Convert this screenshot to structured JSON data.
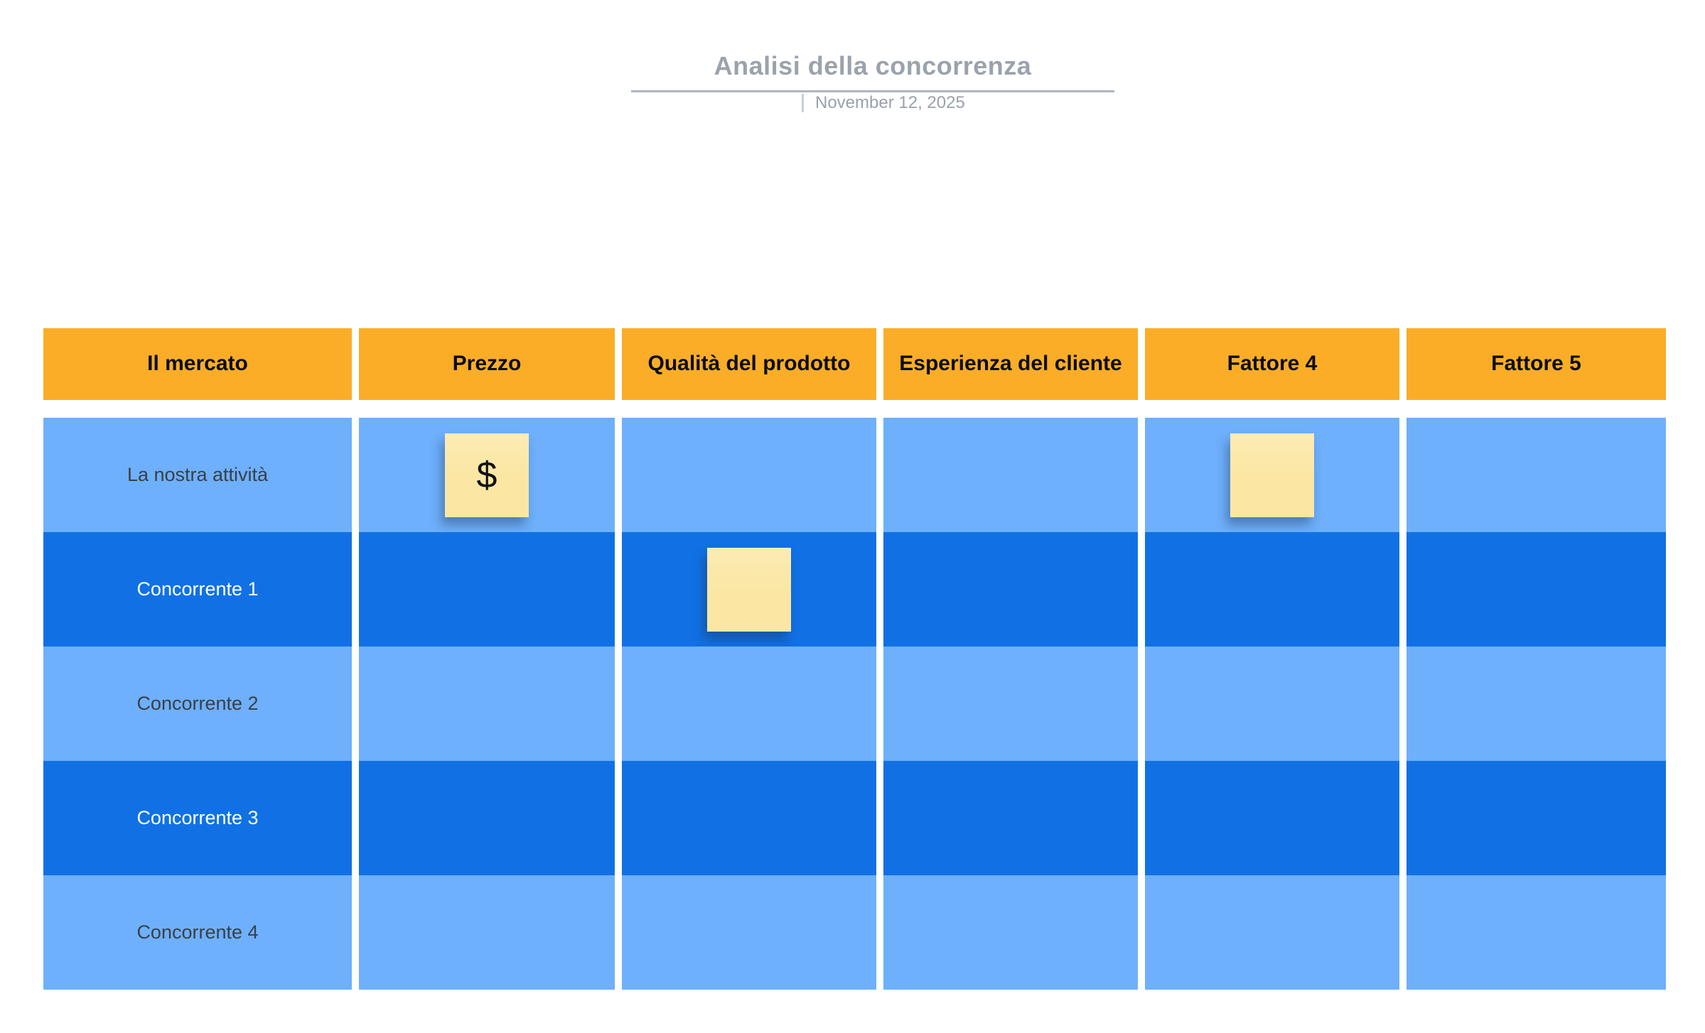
{
  "header": {
    "title": "Analisi della concorrenza",
    "date": "November 12, 2025"
  },
  "colors": {
    "header_orange": "#FBAD28",
    "row_light_blue": "#6EB0FC",
    "row_dark_blue": "#1171E4",
    "sticky_yellow": "#FBE7A3",
    "title_gray": "#9BA2AC",
    "underline_gray": "#AEB5C0",
    "divider_gray": "#C8CDD5",
    "date_gray": "#9AA1AB",
    "label_dark": "#3A4046",
    "label_light": "#FFFFFF",
    "header_text": "#0D0D0D"
  },
  "table": {
    "headers": [
      "Il mercato",
      "Prezzo",
      "Qualità del prodotto",
      "Esperienza del cliente",
      "Fattore 4",
      "Fattore 5"
    ],
    "rows": [
      {
        "label": "La nostra attività",
        "shade": "light"
      },
      {
        "label": "Concorrente 1",
        "shade": "dark"
      },
      {
        "label": "Concorrente 2",
        "shade": "light"
      },
      {
        "label": "Concorrente 3",
        "shade": "dark"
      },
      {
        "label": "Concorrente 4",
        "shade": "light"
      }
    ],
    "stickies": [
      {
        "row": "La nostra attività",
        "column": "Prezzo",
        "text": "$"
      },
      {
        "row": "La nostra attività",
        "column": "Fattore 4",
        "text": ""
      },
      {
        "row": "Concorrente 1",
        "column": "Qualità del prodotto",
        "text": ""
      }
    ]
  }
}
